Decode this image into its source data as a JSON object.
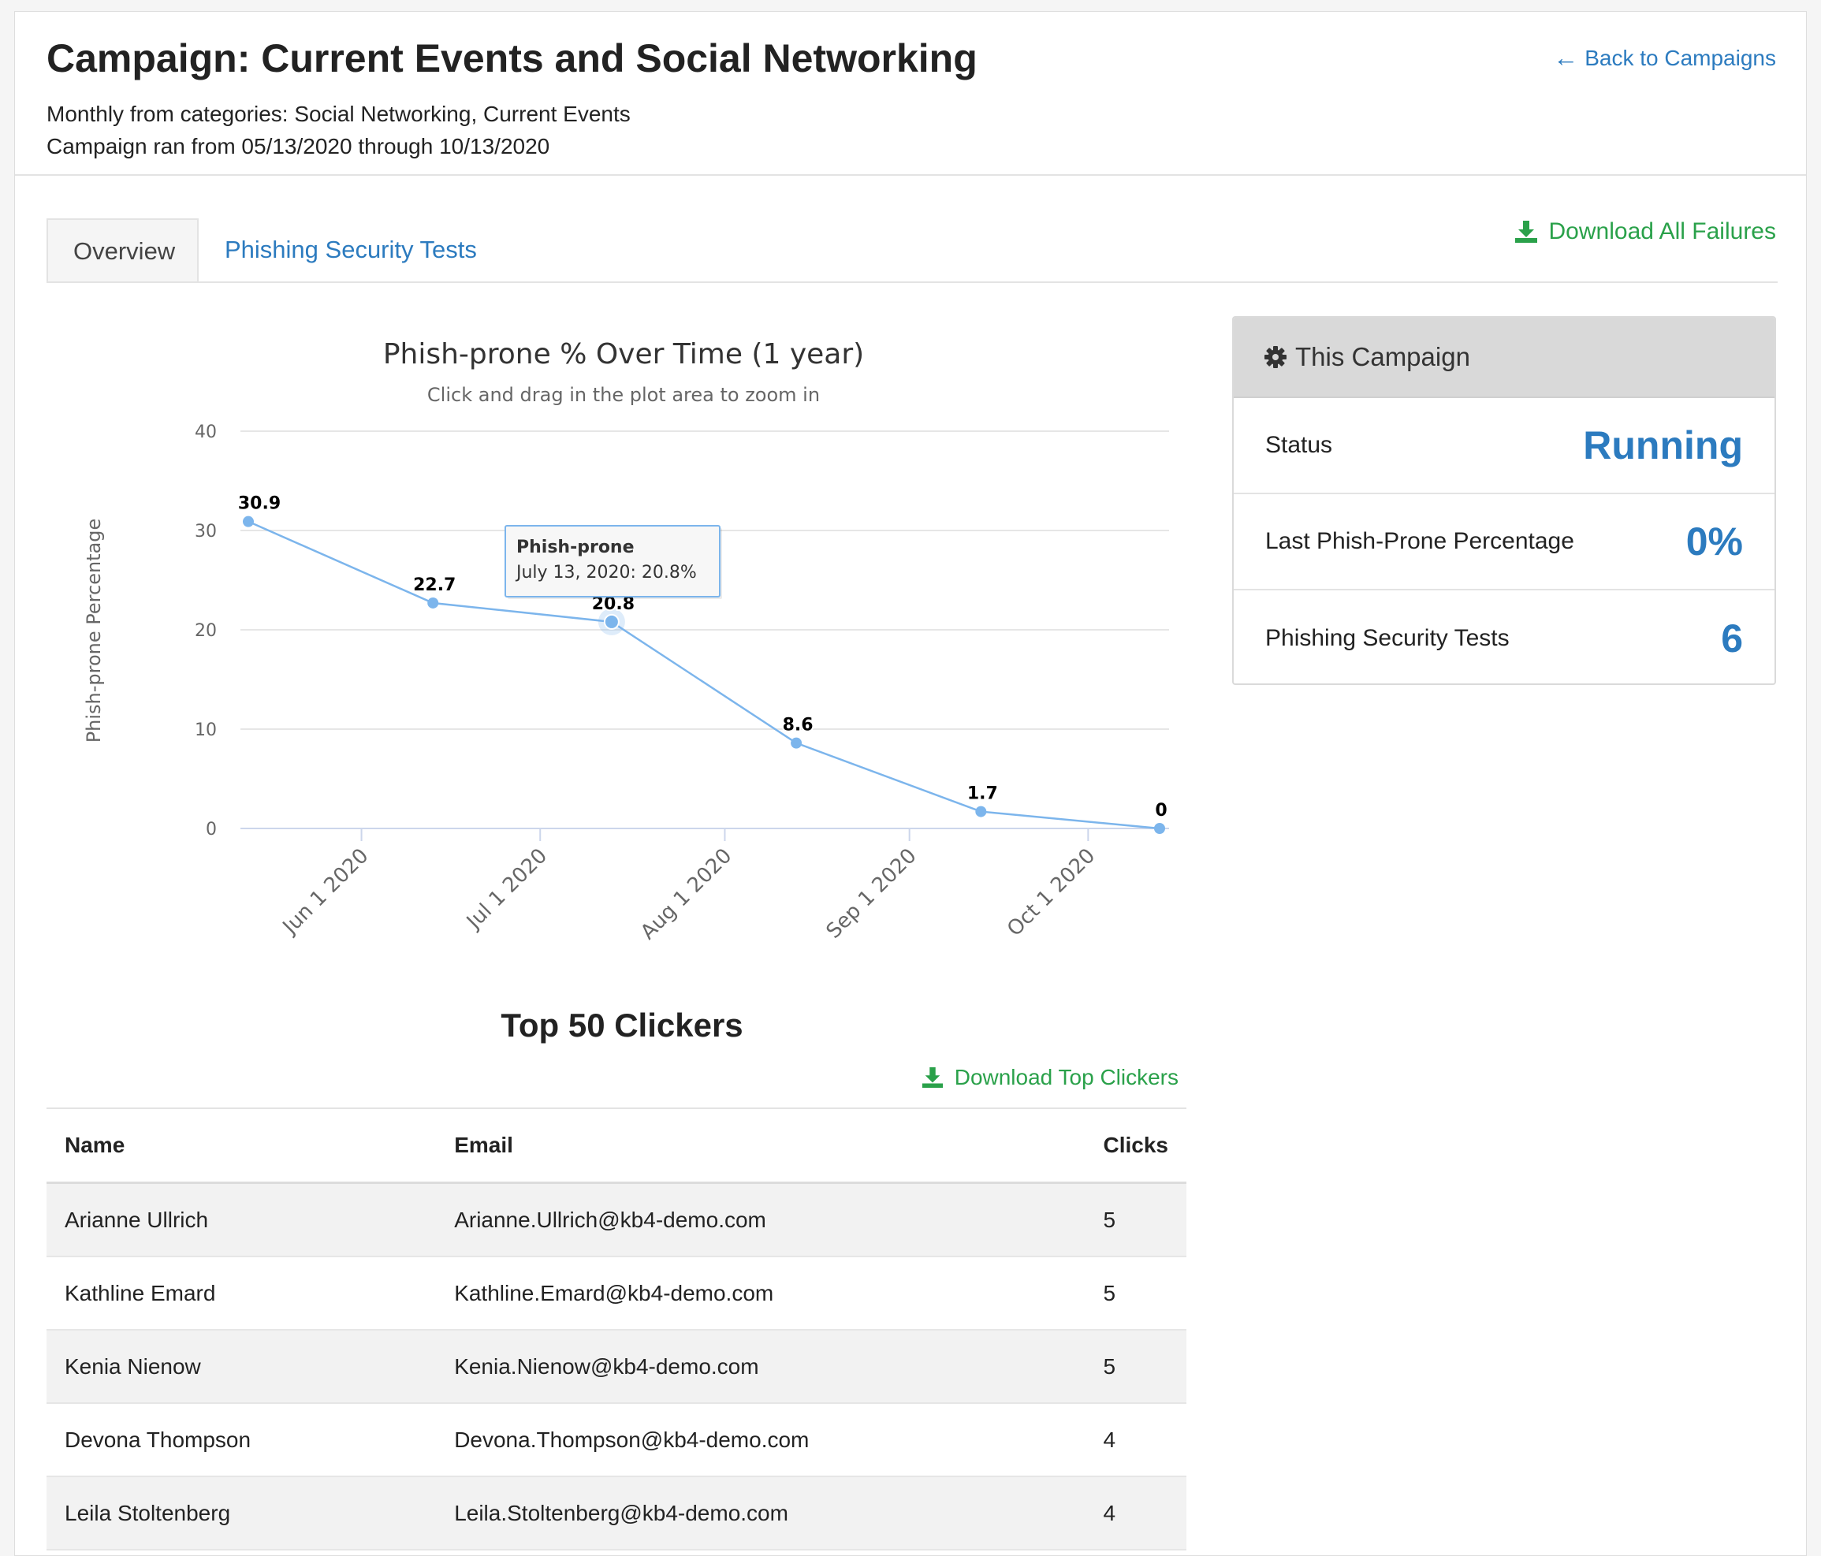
{
  "header": {
    "title": "Campaign: Current Events and Social Networking",
    "subtitle1": "Monthly from categories: Social Networking, Current Events",
    "subtitle2": "Campaign ran from 05/13/2020 through 10/13/2020",
    "back_link": "Back to Campaigns"
  },
  "tabs": [
    {
      "label": "Overview",
      "active": true
    },
    {
      "label": "Phishing Security Tests",
      "active": false
    }
  ],
  "download_all_label": "Download All Failures",
  "chart_data": {
    "type": "line",
    "title": "Phish-prone % Over Time (1 year)",
    "subtitle": "Click and drag in the plot area to zoom in",
    "xlabel": "",
    "ylabel": "Phish-prone Percentage",
    "ylim": [
      0,
      40
    ],
    "yticks": [
      0,
      10,
      20,
      30,
      40
    ],
    "xticks": [
      "Jun 1 2020",
      "Jul 1 2020",
      "Aug 1 2020",
      "Sep 1 2020",
      "Oct 1 2020"
    ],
    "series": [
      {
        "name": "Phish-prone",
        "color": "#7cb5ec",
        "points": [
          {
            "x": "2020-05-13",
            "y": 30.9
          },
          {
            "x": "2020-06-13",
            "y": 22.7
          },
          {
            "x": "2020-07-13",
            "y": 20.8
          },
          {
            "x": "2020-08-13",
            "y": 8.6
          },
          {
            "x": "2020-09-13",
            "y": 1.7
          },
          {
            "x": "2020-10-13",
            "y": 0
          }
        ]
      }
    ],
    "tooltip": {
      "series": "Phish-prone",
      "text": "July 13, 2020: 20.8%",
      "point_x": "2020-07-13"
    }
  },
  "clickers": {
    "title": "Top 50 Clickers",
    "download_label": "Download Top Clickers",
    "columns": [
      "Name",
      "Email",
      "Clicks"
    ],
    "rows": [
      {
        "name": "Arianne Ullrich",
        "email": "Arianne.Ullrich@kb4-demo.com",
        "clicks": "5"
      },
      {
        "name": "Kathline Emard",
        "email": "Kathline.Emard@kb4-demo.com",
        "clicks": "5"
      },
      {
        "name": "Kenia Nienow",
        "email": "Kenia.Nienow@kb4-demo.com",
        "clicks": "5"
      },
      {
        "name": "Devona Thompson",
        "email": "Devona.Thompson@kb4-demo.com",
        "clicks": "4"
      },
      {
        "name": "Leila Stoltenberg",
        "email": "Leila.Stoltenberg@kb4-demo.com",
        "clicks": "4"
      }
    ]
  },
  "campaign_panel": {
    "title": "This Campaign",
    "status_label": "Status",
    "status_value": "Running",
    "last_pct_label": "Last Phish-Prone Percentage",
    "last_pct_value": "0%",
    "tests_label": "Phishing Security Tests",
    "tests_value": "6"
  },
  "colors": {
    "link": "#2c7bbf",
    "download": "#2aa14a",
    "series": "#7cb5ec"
  },
  "icons": {
    "back": "arrow-left-icon",
    "download": "download-icon",
    "settings": "gear-icon"
  }
}
